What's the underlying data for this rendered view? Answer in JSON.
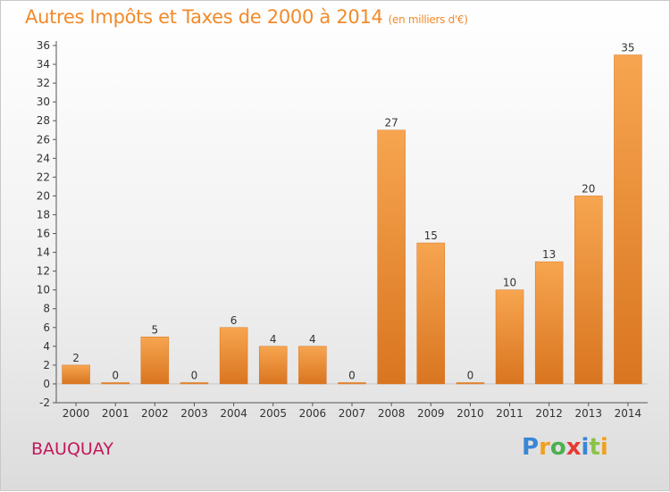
{
  "chart_data": {
    "type": "bar",
    "title": "Autres Impôts et Taxes de 2000 à 2014",
    "subtitle": "(en milliers d'€)",
    "categories": [
      "2000",
      "2001",
      "2002",
      "2003",
      "2004",
      "2005",
      "2006",
      "2007",
      "2008",
      "2009",
      "2010",
      "2011",
      "2012",
      "2013",
      "2014"
    ],
    "values": [
      2,
      0,
      5,
      0,
      6,
      4,
      4,
      0,
      27,
      15,
      0,
      10,
      13,
      20,
      35
    ],
    "ylim": [
      -2,
      36
    ],
    "yticks": [
      -2,
      0,
      2,
      4,
      6,
      8,
      10,
      12,
      14,
      16,
      18,
      20,
      22,
      24,
      26,
      28,
      30,
      32,
      34,
      36
    ],
    "grid": false,
    "colors": {
      "bar_top": "#f7a550",
      "bar_bottom": "#d97520",
      "title": "#f28a2a",
      "commune": "#c2185b"
    }
  },
  "commune": "BAUQUAY",
  "logo": {
    "text": "Proxiti",
    "letters": [
      {
        "ch": "P",
        "color": "#3a86d6"
      },
      {
        "ch": "r",
        "color": "#f0a020"
      },
      {
        "ch": "o",
        "color": "#4caf50"
      },
      {
        "ch": "x",
        "color": "#e53935"
      },
      {
        "ch": "i",
        "color": "#3a86d6"
      },
      {
        "ch": "t",
        "color": "#8bc34a"
      },
      {
        "ch": "i",
        "color": "#f0a020"
      }
    ]
  }
}
